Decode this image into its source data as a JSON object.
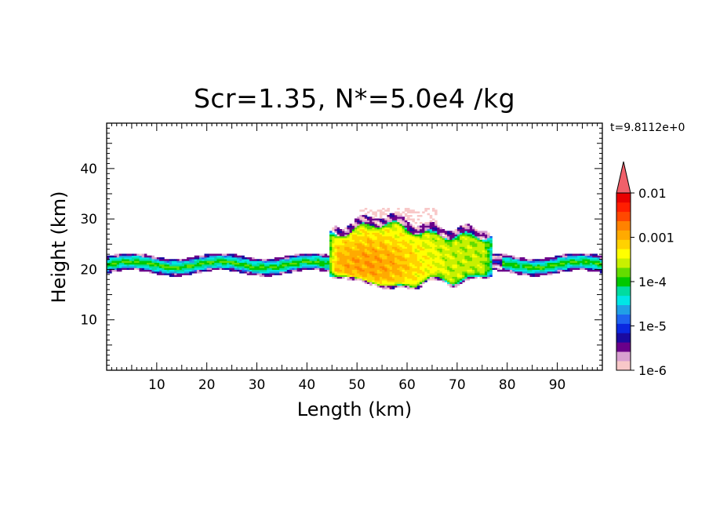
{
  "title": "Scr=1.35, N*=5.0e4 /kg",
  "time_stamp": "t=9.8112e+0",
  "chart_data": {
    "type": "heatmap",
    "title": "Scr=1.35, N*=5.0e4 /kg",
    "xlabel": "Length  (km)",
    "ylabel": "Height  (km)",
    "xlim": [
      0,
      99
    ],
    "ylim": [
      0,
      49
    ],
    "x_ticks": [
      10,
      20,
      30,
      40,
      50,
      60,
      70,
      80,
      90
    ],
    "y_ticks": [
      10,
      20,
      30,
      40
    ],
    "colorbar": {
      "scale": "log",
      "range": [
        1e-06,
        0.01
      ],
      "tick_labels": [
        "0.01",
        "0.001",
        "1e-4",
        "1e-5",
        "1e-6"
      ],
      "colors": [
        "#f8c8c8",
        "#d8a0d0",
        "#6a008a",
        "#1a0aa0",
        "#0a28e0",
        "#1e64f0",
        "#20a0e6",
        "#00e6e6",
        "#00dca0",
        "#00c800",
        "#64dc00",
        "#c8f000",
        "#ffff00",
        "#ffd200",
        "#ffaa00",
        "#ff8200",
        "#ff4800",
        "#ff1e00",
        "#e80000"
      ],
      "extend_max_color": "#f0606a"
    },
    "features": [
      {
        "name": "thin layer",
        "x_range": [
          0,
          99
        ],
        "z_range": [
          19.5,
          22.5
        ],
        "typical_value": 0.0001
      },
      {
        "name": "convective plume",
        "x_range": [
          45,
          76
        ],
        "z_range": [
          16,
          32
        ],
        "peak_value": 0.001
      }
    ]
  }
}
